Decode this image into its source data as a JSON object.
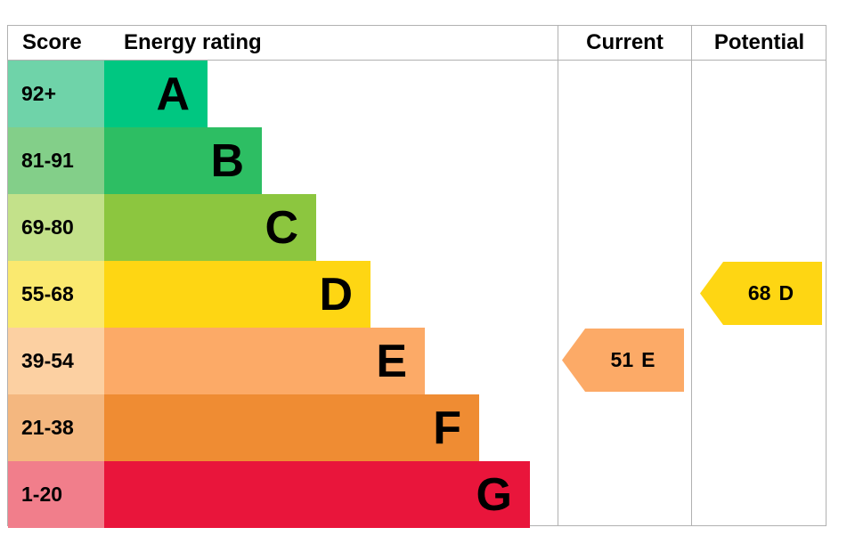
{
  "header": {
    "score": "Score",
    "energy_rating": "Energy rating",
    "current": "Current",
    "potential": "Potential"
  },
  "chart_data": {
    "type": "bar",
    "subtype": "epc_energy_rating_chart",
    "title": "Energy rating",
    "categories": [
      "A",
      "B",
      "C",
      "D",
      "E",
      "F",
      "G"
    ],
    "bands": [
      {
        "score": "92+",
        "letter": "A",
        "bar_color": "#00c781",
        "score_color": "#6fd3a9"
      },
      {
        "score": "81-91",
        "letter": "B",
        "bar_color": "#2dbe63",
        "score_color": "#83cf89"
      },
      {
        "score": "69-80",
        "letter": "C",
        "bar_color": "#8cc63f",
        "score_color": "#c3e18a"
      },
      {
        "score": "55-68",
        "letter": "D",
        "bar_color": "#fed613",
        "score_color": "#fae96f"
      },
      {
        "score": "39-54",
        "letter": "E",
        "bar_color": "#fcaa67",
        "score_color": "#fcd0a2"
      },
      {
        "score": "21-38",
        "letter": "F",
        "bar_color": "#ef8c33",
        "score_color": "#f4b77f"
      },
      {
        "score": "1-20",
        "letter": "G",
        "bar_color": "#e9153b",
        "score_color": "#f17e8b"
      }
    ],
    "current": {
      "value": "51",
      "band": "E",
      "color": "#fcaa67"
    },
    "potential": {
      "value": "68",
      "band": "D",
      "color": "#fed613"
    }
  }
}
